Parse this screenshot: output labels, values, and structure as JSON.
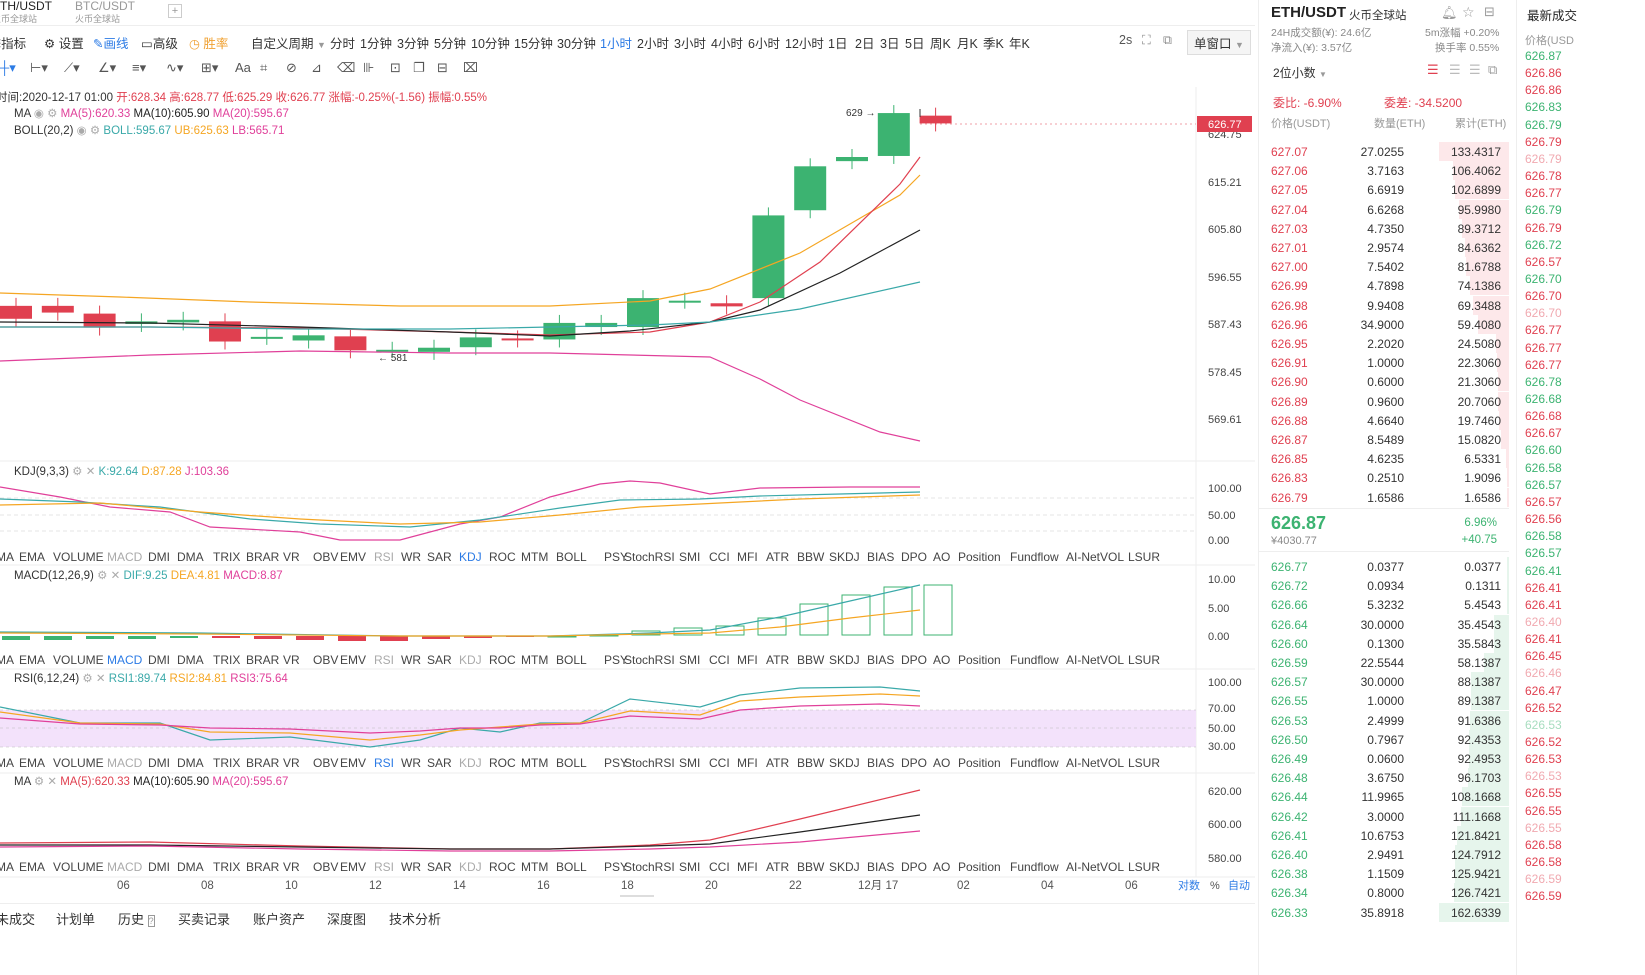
{
  "tabs": [
    {
      "label": "ETH/USDT",
      "sub": "火币全球站"
    },
    {
      "label": "BTC/USDT",
      "sub": "火币全球站"
    }
  ],
  "toolbar": {
    "indicator": "指标",
    "settings": "设置",
    "draw": "画线",
    "advanced": "高级",
    "win_rate": "胜率",
    "custom_period": "自定义周期",
    "periods": [
      "分时",
      "1分钟",
      "3分钟",
      "5分钟",
      "10分钟",
      "15分钟",
      "30分钟",
      "1小时",
      "2小时",
      "3小时",
      "4小时",
      "6小时",
      "12小时",
      "1日",
      "2日",
      "3日",
      "5日",
      "周K",
      "月K",
      "季K",
      "年K"
    ],
    "active_period": "1小时",
    "refresh": "2s",
    "window": "单窗口"
  },
  "info": {
    "time_label": "时间:2020-12-17 01:00",
    "open": "开:628.34",
    "high": "高:628.77",
    "low": "低:625.29",
    "close": "收:626.77",
    "change": "涨幅:-0.25%(-1.56)",
    "amplitude": "振幅:0.55%"
  },
  "ma_legend": {
    "name": "MA",
    "ma5": "MA(5):620.33",
    "ma10": "MA(10):605.90",
    "ma20": "MA(20):595.67"
  },
  "boll_legend": {
    "name": "BOLL(20,2)",
    "boll": "BOLL:595.67",
    "ub": "UB:625.63",
    "lb": "LB:565.71"
  },
  "kdj_legend": {
    "name": "KDJ(9,3,3)",
    "k": "K:92.64",
    "d": "D:87.28",
    "j": "J:103.36"
  },
  "macd_legend": {
    "name": "MACD(12,26,9)",
    "dif": "DIF:9.25",
    "dea": "DEA:4.81",
    "macd": "MACD:8.87"
  },
  "rsi_legend": {
    "name": "RSI(6,12,24)",
    "rsi1": "RSI1:89.74",
    "rsi2": "RSI2:84.81",
    "rsi3": "RSI3:75.64"
  },
  "ma2_legend": {
    "name": "MA",
    "ma5": "MA(5):620.33",
    "ma10": "MA(10):605.90",
    "ma20": "MA(20):595.67"
  },
  "indicator_list": [
    "MA",
    "EMA",
    "VOLUME",
    "MACD",
    "DMI",
    "DMA",
    "TRIX",
    "BRAR",
    "VR",
    "OBV",
    "EMV",
    "RSI",
    "WR",
    "SAR",
    "KDJ",
    "ROC",
    "MTM",
    "BOLL",
    "PSY",
    "StochRSI",
    "SMI",
    "CCI",
    "MFI",
    "ATR",
    "BBW",
    "SKDJ",
    "BIAS",
    "DPO",
    "AO",
    "Position",
    "Fundflow",
    "AI-NetVOL",
    "LSUR"
  ],
  "colors": {
    "up": "#3cb371",
    "down": "#e04050",
    "ma5": "#f5a623",
    "ma10": "#222222",
    "ma20": "#e0409a",
    "boll": "#3aa9a9",
    "accent": "#2c7be5"
  },
  "chart_data": {
    "type": "candlestick",
    "price_axis": [
      "624.75",
      "615.21",
      "605.80",
      "596.55",
      "587.43",
      "578.45",
      "569.61"
    ],
    "current_price_tag": "626.77",
    "high_marker": "629",
    "low_marker": "581",
    "kdj_axis": [
      "100.00",
      "50.00",
      "0.00"
    ],
    "macd_axis": [
      "10.00",
      "5.00",
      "0.00"
    ],
    "rsi_axis": [
      "100.00",
      "70.00",
      "50.00",
      "30.00"
    ],
    "ma_axis": [
      "620.00",
      "600.00",
      "580.00"
    ],
    "x_labels": [
      "06",
      "08",
      "10",
      "12",
      "14",
      "16",
      "18",
      "20",
      "22",
      "12月 17",
      "02",
      "04",
      "06"
    ],
    "x_right": [
      "对数",
      "%",
      "自动"
    ],
    "candles": [
      {
        "o": 591.5,
        "c": 589.0
      },
      {
        "o": 591.5,
        "c": 590.2
      },
      {
        "o": 590.0,
        "c": 587.3
      },
      {
        "o": 588.0,
        "c": 588.5
      },
      {
        "o": 588.3,
        "c": 588.8
      },
      {
        "o": 588.5,
        "c": 584.6
      },
      {
        "o": 585.5,
        "c": 585.5
      },
      {
        "o": 584.8,
        "c": 585.8
      },
      {
        "o": 585.6,
        "c": 582.9
      },
      {
        "o": 583.0,
        "c": 583.0
      },
      {
        "o": 582.6,
        "c": 583.4
      },
      {
        "o": 583.5,
        "c": 585.4
      },
      {
        "o": 585.2,
        "c": 585.0
      },
      {
        "o": 585.0,
        "c": 588.2
      },
      {
        "o": 587.4,
        "c": 588.2
      },
      {
        "o": 587.4,
        "c": 593.0
      },
      {
        "o": 592.5,
        "c": 592.5
      },
      {
        "o": 592.0,
        "c": 591.4
      },
      {
        "o": 593.0,
        "c": 609.0
      },
      {
        "o": 610.0,
        "c": 618.5
      },
      {
        "o": 619.5,
        "c": 620.3
      },
      {
        "o": 620.5,
        "c": 628.8
      },
      {
        "o": 628.3,
        "c": 626.8
      }
    ]
  },
  "orderbook": {
    "pair": "ETH/USDT",
    "exchange": "火币全球站",
    "vol24": "24H成交额(¥): 24.6亿",
    "net_inflow": "净流入(¥): 3.57亿",
    "change5m": "5m涨幅 +0.20%",
    "turnover": "换手率 0.55%",
    "decimals": "2位小数",
    "wei_bi": "委比: -6.90%",
    "wei_cha": "委差: -34.5200",
    "headers": [
      "价格(USDT)",
      "数量(ETH)",
      "累计(ETH)"
    ],
    "asks": [
      [
        "627.07",
        "27.0255",
        "133.4317"
      ],
      [
        "627.06",
        "3.7163",
        "106.4062"
      ],
      [
        "627.05",
        "6.6919",
        "102.6899"
      ],
      [
        "627.04",
        "6.6268",
        "95.9980"
      ],
      [
        "627.03",
        "4.7350",
        "89.3712"
      ],
      [
        "627.01",
        "2.9574",
        "84.6362"
      ],
      [
        "627.00",
        "7.5402",
        "81.6788"
      ],
      [
        "626.99",
        "4.7898",
        "74.1386"
      ],
      [
        "626.98",
        "9.9408",
        "69.3488"
      ],
      [
        "626.96",
        "34.9000",
        "59.4080"
      ],
      [
        "626.95",
        "2.2020",
        "24.5080"
      ],
      [
        "626.91",
        "1.0000",
        "22.3060"
      ],
      [
        "626.90",
        "0.6000",
        "21.3060"
      ],
      [
        "626.89",
        "0.9600",
        "20.7060"
      ],
      [
        "626.88",
        "4.6640",
        "19.7460"
      ],
      [
        "626.87",
        "8.5489",
        "15.0820"
      ],
      [
        "626.85",
        "4.6235",
        "6.5331"
      ],
      [
        "626.83",
        "0.2510",
        "1.9096"
      ],
      [
        "626.79",
        "1.6586",
        "1.6586"
      ]
    ],
    "last_price": "626.87",
    "last_cny": "¥4030.77",
    "last_pct": "6.96%",
    "last_change": "+40.75",
    "bids": [
      [
        "626.77",
        "0.0377",
        "0.0377"
      ],
      [
        "626.72",
        "0.0934",
        "0.1311"
      ],
      [
        "626.66",
        "5.3232",
        "5.4543"
      ],
      [
        "626.64",
        "30.0000",
        "35.4543"
      ],
      [
        "626.60",
        "0.1300",
        "35.5843"
      ],
      [
        "626.59",
        "22.5544",
        "58.1387"
      ],
      [
        "626.57",
        "30.0000",
        "88.1387"
      ],
      [
        "626.55",
        "1.0000",
        "89.1387"
      ],
      [
        "626.53",
        "2.4999",
        "91.6386"
      ],
      [
        "626.50",
        "0.7967",
        "92.4353"
      ],
      [
        "626.49",
        "0.0600",
        "92.4953"
      ],
      [
        "626.48",
        "3.6750",
        "96.1703"
      ],
      [
        "626.44",
        "11.9965",
        "108.1668"
      ],
      [
        "626.42",
        "3.0000",
        "111.1668"
      ],
      [
        "626.41",
        "10.6753",
        "121.8421"
      ],
      [
        "626.40",
        "2.9491",
        "124.7912"
      ],
      [
        "626.38",
        "1.1509",
        "125.9421"
      ],
      [
        "626.34",
        "0.8000",
        "126.7421"
      ],
      [
        "626.33",
        "35.8918",
        "162.6339"
      ]
    ]
  },
  "trades": {
    "title": "最新成交",
    "header": "价格(USD",
    "prices": [
      "626.87",
      "626.86",
      "626.86",
      "626.83",
      "626.79",
      "626.79",
      "626.79",
      "626.78",
      "626.77",
      "626.79",
      "626.79",
      "626.72",
      "626.57",
      "626.70",
      "626.70",
      "626.70",
      "626.77",
      "626.77",
      "626.77",
      "626.78",
      "626.68",
      "626.68",
      "626.67",
      "626.60",
      "626.58",
      "626.57",
      "626.57",
      "626.56",
      "626.58",
      "626.57",
      "626.41",
      "626.41",
      "626.41",
      "626.40",
      "626.41",
      "626.45",
      "626.46",
      "626.47",
      "626.52",
      "626.53",
      "626.52",
      "626.53",
      "626.53",
      "626.55",
      "626.55",
      "626.55",
      "626.58",
      "626.58",
      "626.59",
      "626.59"
    ],
    "dir": [
      "u",
      "d",
      "d",
      "u",
      "u",
      "d",
      "d",
      "d",
      "d",
      "u",
      "d",
      "u",
      "d",
      "u",
      "d",
      "d",
      "d",
      "d",
      "d",
      "u",
      "u",
      "d",
      "d",
      "u",
      "u",
      "u",
      "d",
      "d",
      "u",
      "u",
      "u",
      "d",
      "d",
      "d",
      "d",
      "d",
      "d",
      "d",
      "d",
      "u",
      "d",
      "d",
      "d",
      "d",
      "d",
      "d",
      "d",
      "d",
      "d",
      "d"
    ]
  },
  "bottom_tabs": [
    "未成交",
    "计划单",
    "历史",
    "买卖记录",
    "账户资产",
    "深度图",
    "技术分析"
  ]
}
